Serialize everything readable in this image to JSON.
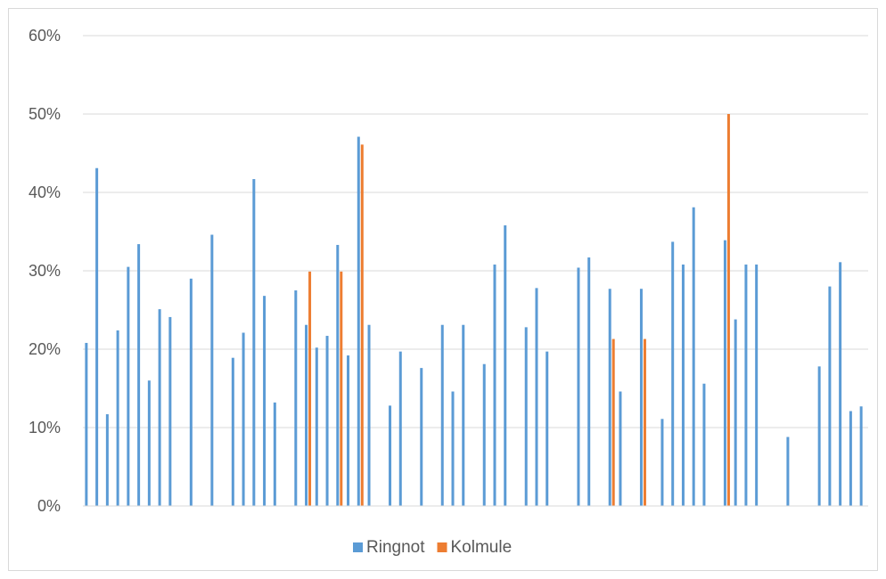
{
  "chart_data": {
    "type": "bar",
    "title": "",
    "xlabel": "",
    "ylabel": "",
    "ylim": [
      0,
      0.6
    ],
    "yticks": [
      "0%",
      "10%",
      "20%",
      "30%",
      "40%",
      "50%",
      "60%"
    ],
    "grid": true,
    "legend_position": "bottom",
    "series": [
      {
        "name": "Ringnot",
        "color": "#5b9bd5",
        "values": [
          0.208,
          0.431,
          0.117,
          0.224,
          0.305,
          0.334,
          0.16,
          0.251,
          0.241,
          null,
          0.29,
          null,
          0.346,
          null,
          0.189,
          0.221,
          0.417,
          0.268,
          0.132,
          null,
          0.275,
          0.231,
          0.202,
          0.217,
          0.333,
          0.192,
          0.471,
          0.231,
          null,
          0.128,
          0.197,
          null,
          0.176,
          null,
          0.231,
          0.146,
          0.231,
          null,
          0.181,
          0.308,
          0.358,
          null,
          0.228,
          0.278,
          0.197,
          null,
          null,
          0.304,
          0.317,
          null,
          0.277,
          0.146,
          null,
          0.277,
          null,
          0.111,
          0.337,
          0.308,
          0.381,
          0.156,
          null,
          0.339,
          0.238,
          0.308,
          0.308,
          null,
          null,
          0.088,
          null,
          null,
          0.178,
          0.28,
          0.311,
          0.121,
          0.127
        ]
      },
      {
        "name": "Kolmule",
        "color": "#ed7d31",
        "values": [
          null,
          null,
          null,
          null,
          null,
          null,
          null,
          null,
          null,
          null,
          null,
          null,
          null,
          null,
          null,
          null,
          null,
          null,
          null,
          null,
          null,
          0.299,
          null,
          null,
          0.299,
          null,
          0.461,
          null,
          null,
          null,
          null,
          null,
          null,
          null,
          null,
          null,
          null,
          null,
          null,
          null,
          null,
          null,
          null,
          null,
          null,
          null,
          null,
          null,
          null,
          null,
          0.213,
          null,
          null,
          0.213,
          null,
          null,
          null,
          null,
          null,
          null,
          null,
          0.5,
          null,
          null,
          null,
          null,
          null,
          null,
          null,
          null,
          null,
          null,
          null,
          null,
          null
        ]
      }
    ]
  }
}
